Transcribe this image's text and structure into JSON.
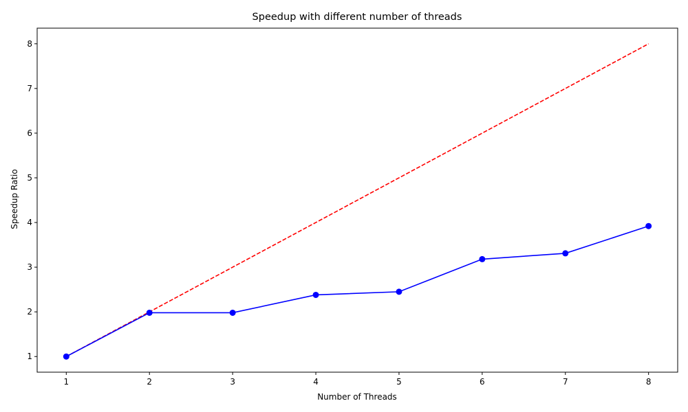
{
  "chart_data": {
    "type": "line",
    "title": "Speedup with different number of threads",
    "xlabel": "Number of Threads",
    "ylabel": "Speedup Ratio",
    "x": [
      1,
      2,
      3,
      4,
      5,
      6,
      7,
      8
    ],
    "xticks": [
      1,
      2,
      3,
      4,
      5,
      6,
      7,
      8
    ],
    "yticks": [
      1,
      2,
      3,
      4,
      5,
      6,
      7,
      8
    ],
    "xlim": [
      0.65,
      8.35
    ],
    "ylim": [
      0.65,
      8.35
    ],
    "grid": false,
    "series": [
      {
        "values": [
          1.0,
          1.98,
          1.98,
          2.38,
          2.45,
          3.18,
          3.31,
          3.92
        ],
        "color": "#0000ff",
        "style": "solid",
        "marker": "circle"
      },
      {
        "values": [
          1,
          2,
          3,
          4,
          5,
          6,
          7,
          8
        ],
        "color": "#ff0000",
        "style": "dashed",
        "marker": "none"
      }
    ]
  }
}
